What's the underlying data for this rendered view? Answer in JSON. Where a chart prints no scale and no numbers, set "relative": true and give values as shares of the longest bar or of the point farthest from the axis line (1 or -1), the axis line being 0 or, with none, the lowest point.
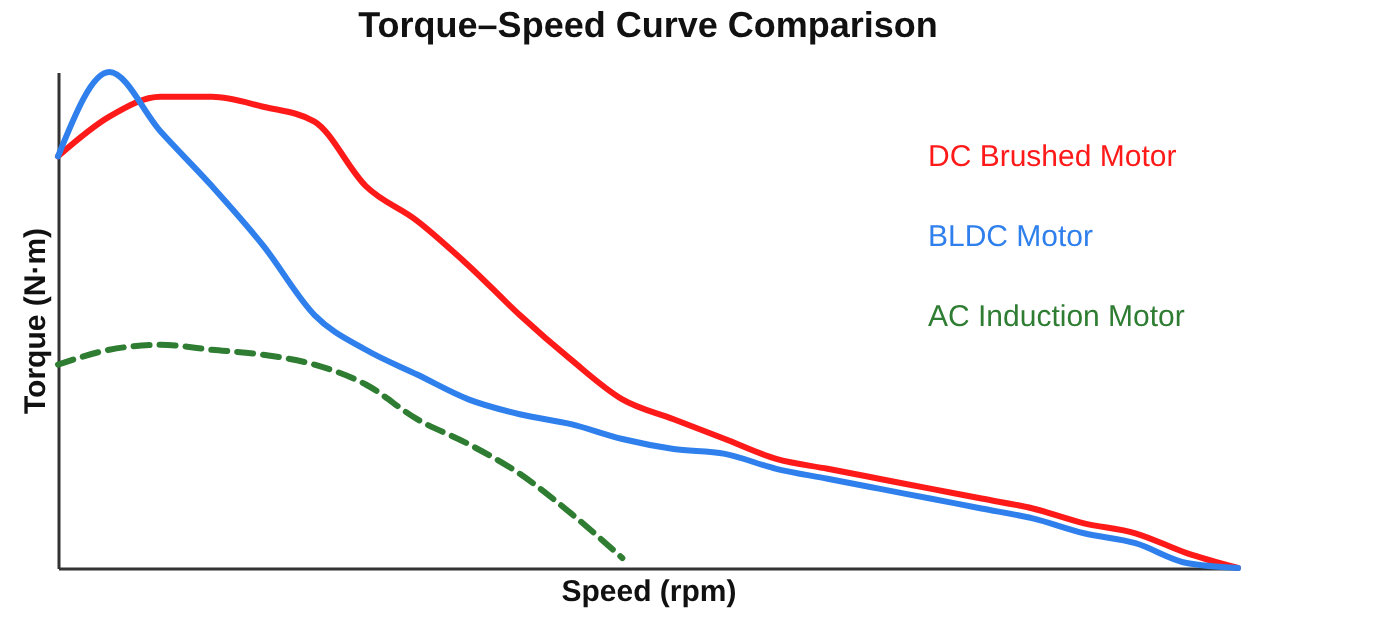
{
  "chart_data": {
    "type": "line",
    "title": "Torque–Speed Curve Comparison",
    "xlabel": "Speed (rpm)",
    "ylabel": "Torque (N·m)",
    "relative": true,
    "legend": "top right",
    "grid": false,
    "categories": [
      null,
      null,
      null,
      null,
      null,
      null,
      null,
      null,
      null,
      null,
      null,
      null,
      null,
      null,
      null,
      null,
      null,
      null,
      null,
      null,
      null,
      null,
      null,
      null
    ],
    "series": [
      {
        "name": "DC Brushed Motor",
        "color": "#ff1a1a",
        "values": [
          0.83,
          0.91,
          0.95,
          0.95,
          0.93,
          0.9,
          0.77,
          0.7,
          0.61,
          0.51,
          0.42,
          0.34,
          0.3,
          0.26,
          0.22,
          0.2,
          0.18,
          0.16,
          0.14,
          0.12,
          0.09,
          0.07,
          0.03,
          0
        ]
      },
      {
        "name": "BLDC Motor",
        "color": "#2f80ed",
        "values": [
          0.83,
          1,
          0.88,
          0.77,
          0.65,
          0.51,
          0.44,
          0.39,
          0.34,
          0.31,
          0.29,
          0.26,
          0.24,
          0.23,
          0.2,
          0.18,
          0.16,
          0.14,
          0.12,
          0.1,
          0.07,
          0.05,
          0.01,
          0
        ]
      },
      {
        "name": "AC Induction Motor",
        "color": "#2e7d32",
        "line_style": "dashed",
        "values": [
          0.41,
          0.44,
          0.45,
          0.44,
          0.43,
          0.41,
          0.37,
          0.3,
          0.25,
          0.19,
          0.11,
          0.02,
          null,
          null,
          null,
          null,
          null,
          null,
          null,
          null,
          null,
          null,
          null,
          null
        ]
      }
    ]
  }
}
